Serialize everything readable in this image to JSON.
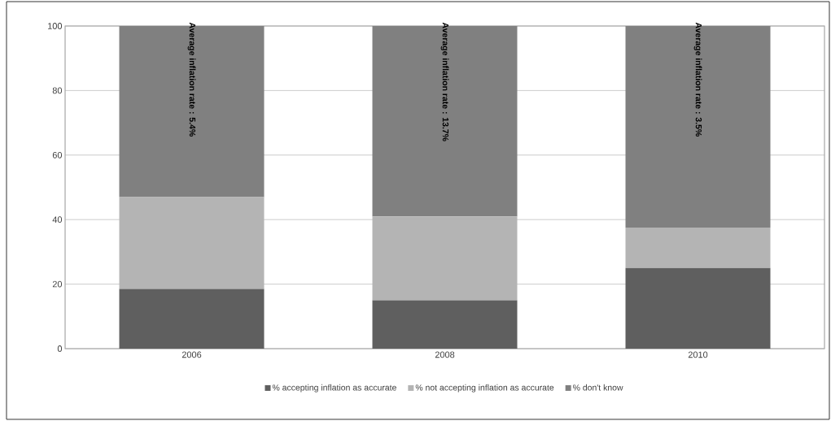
{
  "chart_data": {
    "type": "bar",
    "stacked": true,
    "categories": [
      "2006",
      "2008",
      "2010"
    ],
    "series": [
      {
        "name": "% accepting inflation as accurate",
        "color": "#5f5f5f",
        "values": [
          18.5,
          15,
          25
        ]
      },
      {
        "name": "% not accepting inflation as accurate",
        "color": "#b4b4b4",
        "values": [
          28.5,
          26,
          12.5
        ]
      },
      {
        "name": "% don't know",
        "color": "#808080",
        "values": [
          53,
          59,
          62.5
        ]
      }
    ],
    "ylim": [
      0,
      100
    ],
    "yticks": [
      0,
      20,
      40,
      60,
      80,
      100
    ],
    "grid": "y",
    "legend": "bottom",
    "annotations": [
      "Average inflation rate : 5.4%",
      "Average inflation rate : 13.7%",
      "Average inflation rate : 3.5%"
    ]
  }
}
